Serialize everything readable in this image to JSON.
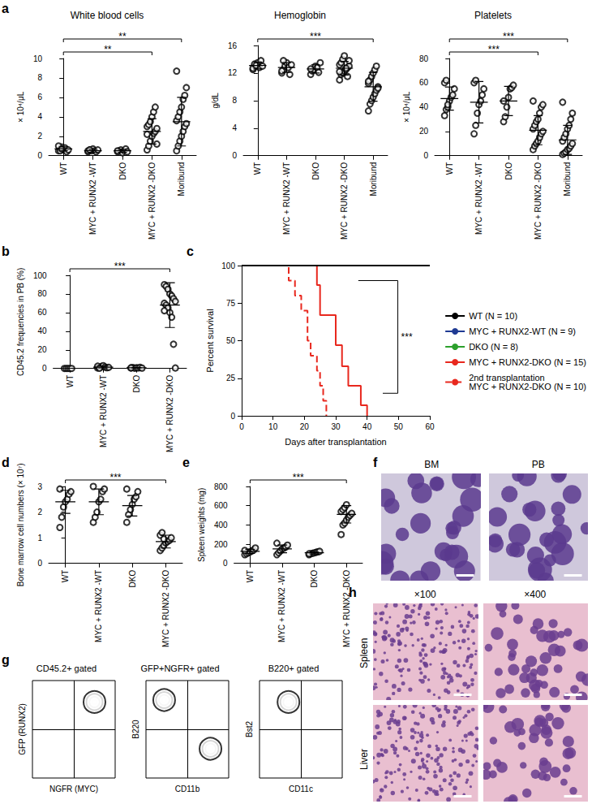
{
  "chart_data": [
    {
      "panel": "a",
      "type": "dot",
      "title": "White blood cells",
      "y_label": "× 10⁴/μL",
      "color": "#000000",
      "marker": "emptyCircle",
      "grid": false,
      "categories": [
        "WT",
        "MYC + RUNX2 -WT",
        "DKO",
        "MYC + RUNX2 -DKO",
        "Moribund"
      ],
      "values": [
        [
          0.5,
          0.7,
          0.9,
          0.6,
          0.8,
          0.4,
          0.6,
          1.0,
          0.5,
          0.7
        ],
        [
          0.4,
          0.6,
          0.5,
          0.7,
          0.5,
          0.4,
          0.6,
          0.5,
          0.6
        ],
        [
          0.4,
          0.5,
          0.6,
          0.3,
          0.5,
          0.7,
          0.4,
          0.5
        ],
        [
          0.6,
          1.0,
          1.5,
          2.0,
          2.3,
          2.5,
          2.8,
          3.0,
          3.2,
          3.5,
          4.0,
          4.5,
          5.0,
          1.2,
          2.2
        ],
        [
          0.5,
          1.0,
          1.5,
          2.0,
          2.5,
          3.0,
          3.3,
          3.6,
          4.0,
          4.5,
          5.0,
          5.8,
          6.2,
          7.0,
          8.7
        ]
      ],
      "mean": [
        0.7,
        0.5,
        0.5,
        2.5,
        3.5
      ],
      "sd": [
        0.2,
        0.15,
        0.15,
        1.3,
        2.5
      ],
      "ylim": [
        0,
        10
      ],
      "yticks": [
        0,
        2,
        4,
        6,
        8,
        10
      ],
      "comparisons": [
        {
          "from": "WT",
          "to": "MYC + RUNX2 -DKO",
          "label": "**"
        },
        {
          "from": "WT",
          "to": "Moribund",
          "label": "**"
        }
      ]
    },
    {
      "type": "dot",
      "title": "Hemoglobin",
      "y_label": "g/dL",
      "color": "#000000",
      "marker": "emptyCircle",
      "grid": false,
      "categories": [
        "WT",
        "MYC + RUNX2 -WT",
        "DKO",
        "MYC + RUNX2 -DKO",
        "Moribund"
      ],
      "values": [
        [
          12.5,
          13.0,
          13.2,
          13.5,
          12.8,
          13.8,
          13.0,
          12.7,
          13.3,
          13.1
        ],
        [
          12.0,
          12.5,
          13.0,
          13.5,
          12.8,
          11.8,
          13.2,
          12.3,
          13.8
        ],
        [
          11.8,
          12.3,
          12.5,
          13.0,
          12.8,
          12.1,
          13.5,
          12.6
        ],
        [
          11.0,
          11.8,
          12.0,
          12.3,
          12.5,
          12.8,
          13.0,
          13.2,
          13.5,
          14.0,
          14.5,
          12.7,
          11.5,
          13.8,
          12.2
        ],
        [
          6.5,
          7.5,
          8.0,
          8.5,
          9.0,
          9.5,
          10.0,
          10.5,
          11.0,
          11.5,
          12.0,
          12.5,
          13.0,
          9.8,
          10.8
        ]
      ],
      "mean": [
        13.1,
        12.8,
        12.6,
        12.7,
        10.0
      ],
      "sd": [
        0.5,
        0.7,
        0.6,
        1.0,
        2.1
      ],
      "ylim": [
        0,
        16
      ],
      "yticks": [
        0,
        4,
        8,
        12,
        16
      ],
      "comparisons": [
        {
          "from": "WT",
          "to": "Moribund",
          "label": "***"
        }
      ]
    },
    {
      "type": "dot",
      "title": "Platelets",
      "y_label": "× 10⁴/μL",
      "color": "#000000",
      "marker": "emptyCircle",
      "grid": false,
      "categories": [
        "WT",
        "MYC + RUNX2 -WT",
        "DKO",
        "MYC + RUNX2 -DKO",
        "Moribund"
      ],
      "values": [
        [
          33,
          38,
          40,
          45,
          48,
          50,
          55,
          60,
          62,
          42
        ],
        [
          18,
          25,
          35,
          42,
          45,
          50,
          55,
          60,
          62
        ],
        [
          28,
          32,
          40,
          48,
          55,
          56,
          58,
          45
        ],
        [
          5,
          8,
          10,
          12,
          15,
          18,
          20,
          22,
          25,
          28,
          30,
          35,
          40,
          42,
          45
        ],
        [
          1,
          2,
          3,
          5,
          6,
          8,
          10,
          12,
          15,
          18,
          22,
          25,
          30,
          35,
          44
        ]
      ],
      "mean": [
        47,
        44,
        45,
        21,
        13
      ],
      "sd": [
        9.5,
        17,
        12,
        12,
        12
      ],
      "ylim": [
        0,
        80
      ],
      "yticks": [
        0,
        20,
        40,
        60,
        80
      ],
      "comparisons": [
        {
          "from": "WT",
          "to": "MYC + RUNX2 -DKO",
          "label": "***"
        },
        {
          "from": "WT",
          "to": "Moribund",
          "label": "***"
        }
      ]
    },
    {
      "panel": "b",
      "type": "dot",
      "y_label": "CD45.2 frequencies in PB (%)",
      "color": "#000000",
      "marker": "emptyCircle",
      "grid": false,
      "categories": [
        "WT",
        "MYC + RUNX2 -WT",
        "DKO",
        "MYC + RUNX2 -DKO"
      ],
      "values": [
        [
          0,
          0,
          0,
          0,
          0
        ],
        [
          0.5,
          1,
          2,
          3,
          1.5,
          0.8,
          1.2,
          2.5,
          0.3
        ],
        [
          0.5,
          1,
          0.3,
          0.8,
          0.6,
          1.2,
          0.4,
          0.7
        ],
        [
          90,
          88,
          85,
          80,
          78,
          75,
          72,
          70,
          68,
          65,
          60,
          55,
          26,
          0.5,
          62
        ]
      ],
      "mean": [
        0,
        1.4,
        0.7,
        68
      ],
      "sd": [
        0,
        1,
        0.3,
        24
      ],
      "ylim": [
        0,
        100
      ],
      "yticks": [
        0,
        20,
        40,
        60,
        80,
        100
      ],
      "comparisons": [
        {
          "from": "WT",
          "to": "MYC + RUNX2 -DKO",
          "label": "***"
        }
      ]
    },
    {
      "panel": "c",
      "type": "step",
      "x_label": "Days after transplantation",
      "y_label": "Percent survival",
      "legend": "right",
      "grid": false,
      "xlim": [
        0,
        60
      ],
      "xticks": [
        0,
        10,
        20,
        30,
        40,
        50,
        60
      ],
      "ylim": [
        0,
        100
      ],
      "yticks": [
        0,
        25,
        50,
        75,
        100
      ],
      "series": [
        {
          "name": "WT (N = 10)",
          "color": "#000000",
          "line_style": "solid",
          "x": [
            0,
            60
          ],
          "values": [
            100,
            100
          ]
        },
        {
          "name": "MYC + RUNX2-WT (N = 9)",
          "color": "#1f3a93",
          "line_style": "solid",
          "x": [
            0,
            60
          ],
          "values": [
            100,
            100
          ]
        },
        {
          "name": "DKO (N = 8)",
          "color": "#2ca02c",
          "line_style": "solid",
          "x": [
            0,
            60
          ],
          "values": [
            100,
            100
          ]
        },
        {
          "name": "MYC + RUNX2-DKO (N = 15)",
          "color": "#e8281e",
          "line_style": "solid",
          "x": [
            0,
            24,
            25,
            30,
            32,
            34,
            38,
            40
          ],
          "values": [
            100,
            87,
            67,
            47,
            33,
            20,
            7,
            0
          ]
        },
        {
          "name": "2nd transplantation\nMYC + RUNX2-DKO (N = 10)",
          "color": "#e8281e",
          "line_style": "dashed",
          "x": [
            0,
            15,
            17,
            19,
            21,
            22,
            24,
            25,
            26,
            27
          ],
          "values": [
            100,
            90,
            80,
            70,
            50,
            40,
            30,
            20,
            10,
            0
          ]
        }
      ],
      "comparisons": [
        {
          "from": "MYC + RUNX2-DKO (N = 15)",
          "to": "2nd transplantation\nMYC + RUNX2-DKO (N = 10)",
          "label": "***"
        }
      ]
    },
    {
      "panel": "d",
      "type": "dot",
      "y_label": "Bone marrow cell numbers (× 10⁷)",
      "color": "#000000",
      "marker": "emptyCircle",
      "grid": false,
      "categories": [
        "WT",
        "MYC + RUNX2 -WT",
        "DKO",
        "MYC + RUNX2 -DKO"
      ],
      "values": [
        [
          1.4,
          1.8,
          2.2,
          2.4,
          2.5,
          2.7,
          2.8,
          2.9
        ],
        [
          1.6,
          1.8,
          2.0,
          2.4,
          2.5,
          2.8,
          2.9,
          3.0
        ],
        [
          1.6,
          1.9,
          2.1,
          2.3,
          2.5,
          2.6,
          2.8,
          2.9
        ],
        [
          0.5,
          0.6,
          0.7,
          0.8,
          0.85,
          0.9,
          1.0,
          1.1,
          1.2,
          0.95
        ]
      ],
      "mean": [
        2.4,
        2.4,
        2.25,
        0.85
      ],
      "sd": [
        0.45,
        0.5,
        0.4,
        0.25
      ],
      "ylim": [
        0,
        3
      ],
      "yticks": [
        0,
        1,
        2,
        3
      ],
      "comparisons": [
        {
          "from": "WT",
          "to": "MYC + RUNX2 -DKO",
          "label": "***"
        }
      ]
    },
    {
      "panel": "e",
      "type": "dot",
      "y_label": "Spleen weights (mg)",
      "color": "#000000",
      "marker": "emptyCircle",
      "grid": false,
      "categories": [
        "WT",
        "MYC + RUNX2 -WT",
        "DKO",
        "MYC + RUNX2 -DKO"
      ],
      "values": [
        [
          90,
          100,
          110,
          120,
          130,
          140,
          160,
          135
        ],
        [
          90,
          110,
          130,
          150,
          160,
          170,
          190,
          210
        ],
        [
          90,
          100,
          105,
          110,
          115,
          120,
          125,
          100
        ],
        [
          300,
          400,
          420,
          450,
          480,
          500,
          520,
          540,
          560,
          580,
          610
        ]
      ],
      "mean": [
        125,
        150,
        110,
        510
      ],
      "sd": [
        22,
        40,
        12,
        90
      ],
      "ylim": [
        0,
        800
      ],
      "yticks": [
        0,
        200,
        400,
        600,
        800
      ],
      "comparisons": [
        {
          "from": "WT",
          "to": "MYC + RUNX2 -DKO",
          "label": "***"
        }
      ]
    },
    {
      "panel": "g",
      "type": "contour",
      "title": "CD45.2+ gated",
      "x_label": "NGFR (MYC)",
      "y_label": "GFP (RUNX2)",
      "tick_labels": false,
      "xlim": [
        0,
        1
      ],
      "ylim": [
        0,
        1
      ],
      "populations": [
        {
          "x": 0.75,
          "y": 0.78
        }
      ]
    },
    {
      "type": "contour",
      "title": "GFP+NGFR+ gated",
      "x_label": "CD11b",
      "y_label": "B220",
      "tick_labels": false,
      "xlim": [
        0,
        1
      ],
      "ylim": [
        0,
        1
      ],
      "populations": [
        {
          "x": 0.22,
          "y": 0.8
        },
        {
          "x": 0.78,
          "y": 0.3
        }
      ]
    },
    {
      "type": "contour",
      "title": "B220+ gated",
      "x_label": "CD11c",
      "y_label": "Bst2",
      "tick_labels": false,
      "xlim": [
        0,
        1
      ],
      "ylim": [
        0,
        1
      ],
      "populations": [
        {
          "x": 0.35,
          "y": 0.78
        }
      ]
    }
  ],
  "images": [
    {
      "panel": "f",
      "labels": [
        "BM",
        "PB"
      ]
    },
    {
      "panel": "h",
      "columns": [
        "×100",
        "×400"
      ],
      "rows": [
        "Spleen",
        "Liver"
      ]
    }
  ]
}
